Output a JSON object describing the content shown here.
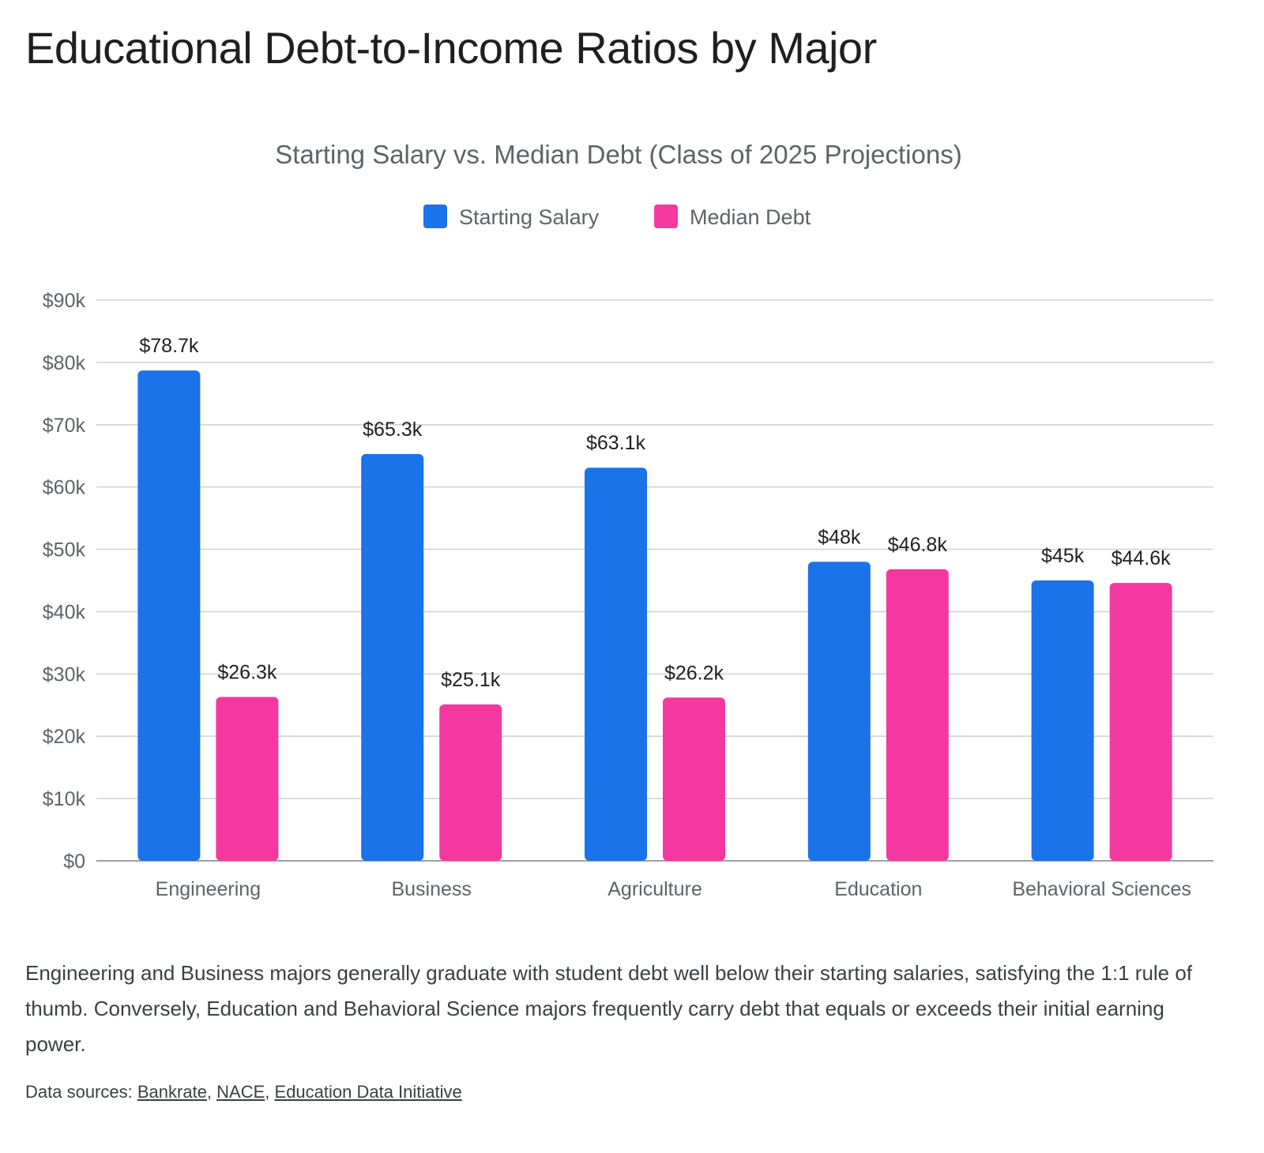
{
  "page": {
    "title": "Educational Debt-to-Income Ratios by Major",
    "description": "Engineering and Business majors generally graduate with student debt well below their starting salaries, satisfying the 1:1 rule of thumb. Conversely, Education and Behavioral Science majors frequently carry debt that equals or exceeds their initial earning power.",
    "sources_label": "Data sources:",
    "sources": [
      {
        "label": "Bankrate"
      },
      {
        "label": "NACE"
      },
      {
        "label": "Education Data Initiative"
      }
    ],
    "source_separator": ", "
  },
  "chart_data": {
    "type": "bar",
    "title": "Starting Salary vs. Median Debt (Class of 2025 Projections)",
    "categories": [
      "Engineering",
      "Business",
      "Agriculture",
      "Education",
      "Behavioral Sciences"
    ],
    "series": [
      {
        "name": "Starting Salary",
        "color": "#1a73e8",
        "values": [
          78.7,
          65.3,
          63.1,
          48,
          45
        ],
        "labels": [
          "$78.7k",
          "$65.3k",
          "$63.1k",
          "$48k",
          "$45k"
        ]
      },
      {
        "name": "Median Debt",
        "color": "#f538a0",
        "values": [
          26.3,
          25.1,
          26.2,
          46.8,
          44.6
        ],
        "labels": [
          "$26.3k",
          "$25.1k",
          "$26.2k",
          "$46.8k",
          "$44.6k"
        ]
      }
    ],
    "ylim": [
      0,
      90
    ],
    "yticks": [
      0,
      10,
      20,
      30,
      40,
      50,
      60,
      70,
      80,
      90
    ],
    "ytick_labels": [
      "$0",
      "$10k",
      "$20k",
      "$30k",
      "$40k",
      "$50k",
      "$60k",
      "$70k",
      "$80k",
      "$90k"
    ],
    "xlabel": "",
    "ylabel": "",
    "grid": true,
    "legend": "top-center"
  }
}
